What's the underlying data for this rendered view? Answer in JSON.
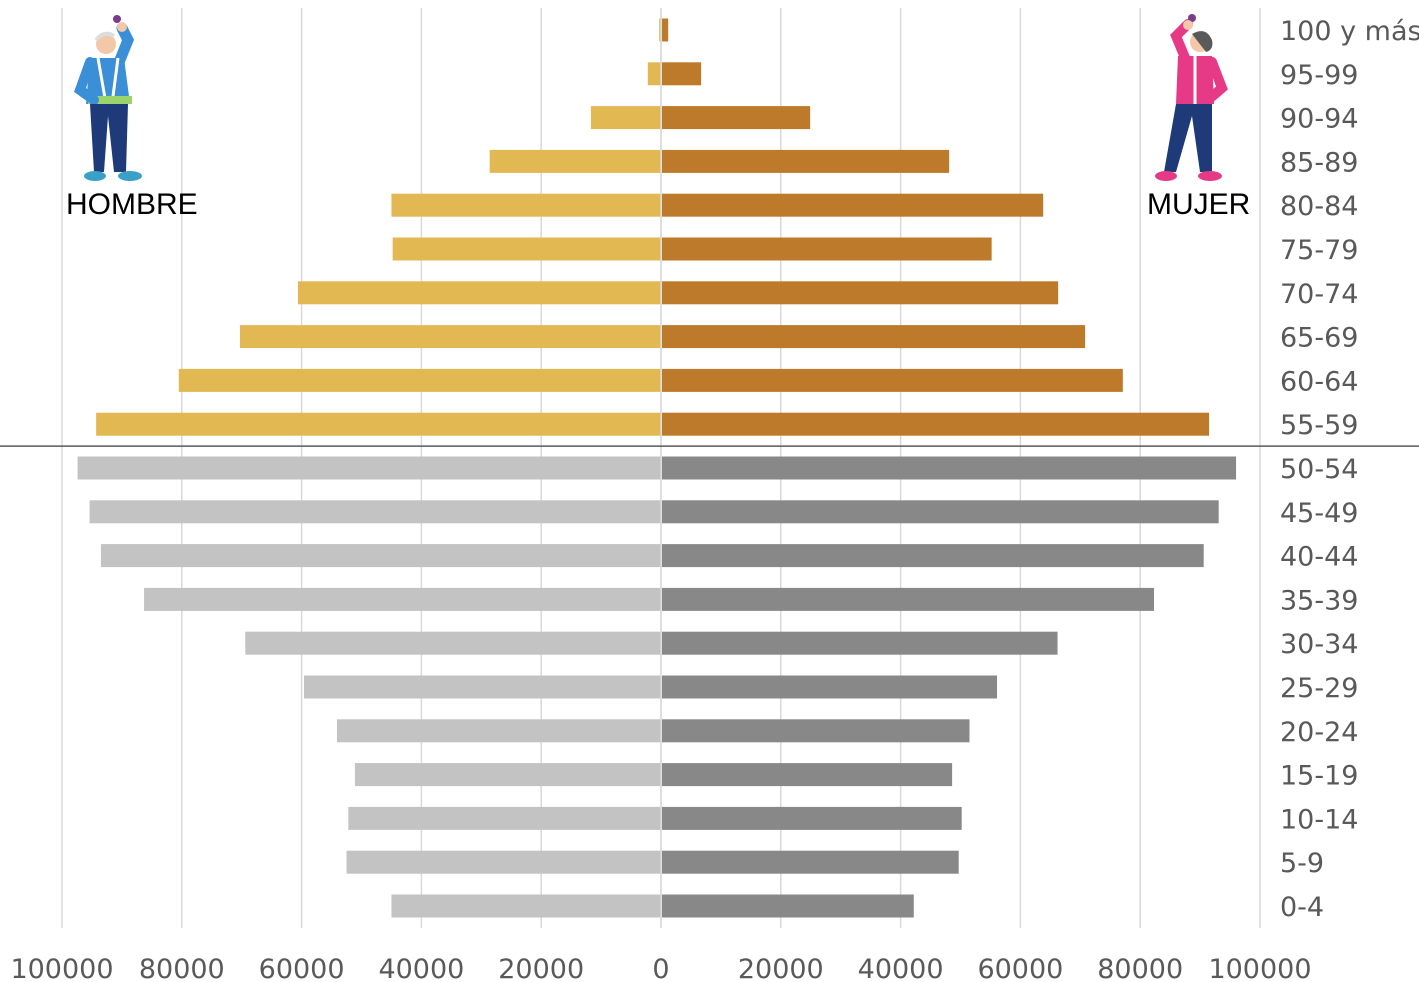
{
  "chart_data": {
    "type": "bar",
    "orientation": "horizontal",
    "layout": "population-pyramid",
    "categories": [
      "100 y más",
      "95-99",
      "90-94",
      "85-89",
      "80-84",
      "75-79",
      "70-74",
      "65-69",
      "60-64",
      "55-59",
      "50-54",
      "45-49",
      "40-44",
      "35-39",
      "30-34",
      "25-29",
      "20-24",
      "15-19",
      "10-14",
      "5-9",
      "0-4"
    ],
    "series": [
      {
        "name": "HOMBRE",
        "side": "left",
        "values": [
          300,
          2200,
          11700,
          28600,
          45000,
          44800,
          60600,
          70300,
          80500,
          94300,
          97400,
          95400,
          93500,
          86300,
          69400,
          59600,
          54100,
          51100,
          52200,
          52500,
          45000
        ]
      },
      {
        "name": "MUJER",
        "side": "right",
        "values": [
          1200,
          6700,
          24900,
          48100,
          63800,
          55200,
          66300,
          70800,
          77100,
          91500,
          96000,
          93100,
          90600,
          82300,
          66200,
          56100,
          51500,
          48600,
          50200,
          49700,
          42200
        ]
      }
    ],
    "colors": {
      "hombre_55_plus": "#E2B853",
      "mujer_55_plus": "#BD7A2A",
      "hombre_under_55": "#C3C3C3",
      "mujer_under_55": "#888888",
      "gridline": "#D9D9D9",
      "separator": "#595959",
      "tick_text": "#595959"
    },
    "highlight_from_category": "55-59",
    "xlim": [
      -100000,
      100000
    ],
    "x_ticks": [
      -100000,
      -80000,
      -60000,
      -40000,
      -20000,
      0,
      20000,
      40000,
      60000,
      80000,
      100000
    ],
    "x_tick_labels": [
      "100000",
      "80000",
      "60000",
      "40000",
      "20000",
      "0",
      "20000",
      "40000",
      "60000",
      "80000",
      "100000"
    ],
    "grid": "vertical",
    "separator_between": [
      "55-59",
      "50-54"
    ],
    "category_axis_side": "right",
    "title": "",
    "xlabel": "",
    "ylabel": ""
  },
  "decorations": {
    "left_figure_icon": "elderly-man-stretching-icon",
    "right_figure_icon": "elderly-woman-stretching-icon"
  }
}
